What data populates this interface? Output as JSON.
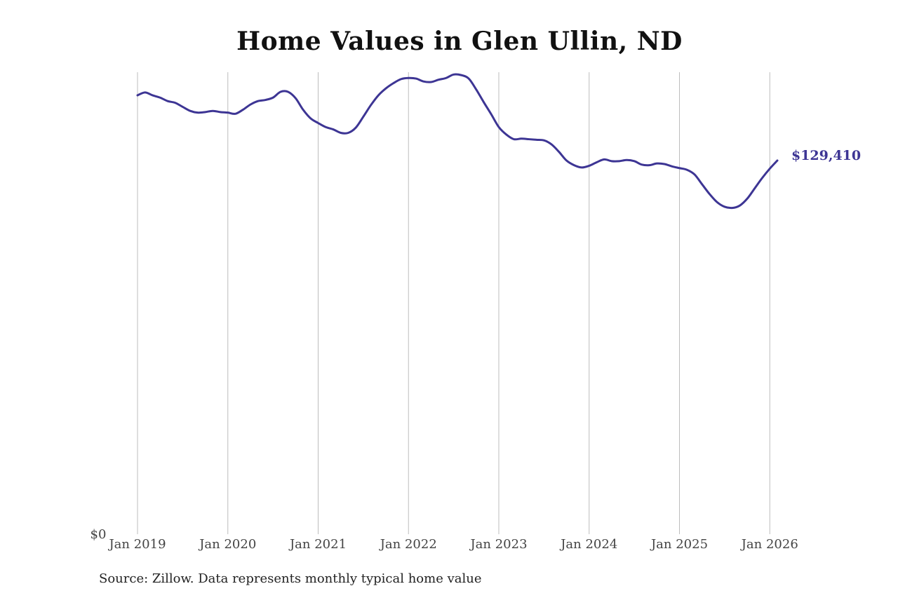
{
  "chart_data": {
    "type": "line",
    "title": "Home Values in Glen Ullin, ND",
    "source": "Source: Zillow. Data represents monthly typical home value",
    "y_baseline_label": "$0",
    "x_tick_labels": [
      "Jan 2019",
      "Jan 2020",
      "Jan 2021",
      "Jan 2022",
      "Jan 2023",
      "Jan 2024",
      "Jan 2025",
      "Jan 2026"
    ],
    "xlim": [
      "2018-11",
      "2026-02"
    ],
    "ylim": [
      0,
      160000
    ],
    "grid": "vertical",
    "line_color": "#3d3594",
    "series": [
      {
        "end_label": "$129,410",
        "points": [
          [
            "2019-01",
            152000
          ],
          [
            "2019-02",
            153000
          ],
          [
            "2019-03",
            152000
          ],
          [
            "2019-04",
            151200
          ],
          [
            "2019-05",
            150000
          ],
          [
            "2019-06",
            149400
          ],
          [
            "2019-07",
            148000
          ],
          [
            "2019-08",
            146600
          ],
          [
            "2019-09",
            146000
          ],
          [
            "2019-10",
            146200
          ],
          [
            "2019-11",
            146600
          ],
          [
            "2019-12",
            146200
          ],
          [
            "2020-01",
            146000
          ],
          [
            "2020-02",
            145600
          ],
          [
            "2020-03",
            147000
          ],
          [
            "2020-04",
            148800
          ],
          [
            "2020-05",
            150000
          ],
          [
            "2020-06",
            150400
          ],
          [
            "2020-07",
            151200
          ],
          [
            "2020-08",
            153200
          ],
          [
            "2020-09",
            153200
          ],
          [
            "2020-10",
            151000
          ],
          [
            "2020-11",
            147000
          ],
          [
            "2020-12",
            144000
          ],
          [
            "2021-01",
            142400
          ],
          [
            "2021-02",
            141000
          ],
          [
            "2021-03",
            140200
          ],
          [
            "2021-04",
            139000
          ],
          [
            "2021-05",
            139000
          ],
          [
            "2021-06",
            140800
          ],
          [
            "2021-07",
            144600
          ],
          [
            "2021-08",
            148600
          ],
          [
            "2021-09",
            152000
          ],
          [
            "2021-10",
            154400
          ],
          [
            "2021-11",
            156200
          ],
          [
            "2021-12",
            157600
          ],
          [
            "2022-01",
            158000
          ],
          [
            "2022-02",
            157800
          ],
          [
            "2022-03",
            156800
          ],
          [
            "2022-04",
            156600
          ],
          [
            "2022-05",
            157400
          ],
          [
            "2022-06",
            158000
          ],
          [
            "2022-07",
            159200
          ],
          [
            "2022-08",
            159000
          ],
          [
            "2022-09",
            157800
          ],
          [
            "2022-10",
            154000
          ],
          [
            "2022-11",
            149600
          ],
          [
            "2022-12",
            145400
          ],
          [
            "2023-01",
            141000
          ],
          [
            "2023-02",
            138400
          ],
          [
            "2023-03",
            136800
          ],
          [
            "2023-04",
            137000
          ],
          [
            "2023-05",
            136800
          ],
          [
            "2023-06",
            136600
          ],
          [
            "2023-07",
            136400
          ],
          [
            "2023-08",
            135000
          ],
          [
            "2023-09",
            132400
          ],
          [
            "2023-10",
            129400
          ],
          [
            "2023-11",
            127800
          ],
          [
            "2023-12",
            127000
          ],
          [
            "2024-01",
            127600
          ],
          [
            "2024-02",
            128800
          ],
          [
            "2024-03",
            129800
          ],
          [
            "2024-04",
            129200
          ],
          [
            "2024-05",
            129200
          ],
          [
            "2024-06",
            129600
          ],
          [
            "2024-07",
            129200
          ],
          [
            "2024-08",
            128000
          ],
          [
            "2024-09",
            127800
          ],
          [
            "2024-10",
            128400
          ],
          [
            "2024-11",
            128200
          ],
          [
            "2024-12",
            127400
          ],
          [
            "2025-01",
            126800
          ],
          [
            "2025-02",
            126200
          ],
          [
            "2025-03",
            124600
          ],
          [
            "2025-04",
            121200
          ],
          [
            "2025-05",
            117800
          ],
          [
            "2025-06",
            115000
          ],
          [
            "2025-07",
            113400
          ],
          [
            "2025-08",
            113000
          ],
          [
            "2025-09",
            113800
          ],
          [
            "2025-10",
            116200
          ],
          [
            "2025-11",
            119800
          ],
          [
            "2025-12",
            123400
          ],
          [
            "2026-01",
            126600
          ],
          [
            "2026-02",
            129410
          ]
        ]
      }
    ]
  }
}
